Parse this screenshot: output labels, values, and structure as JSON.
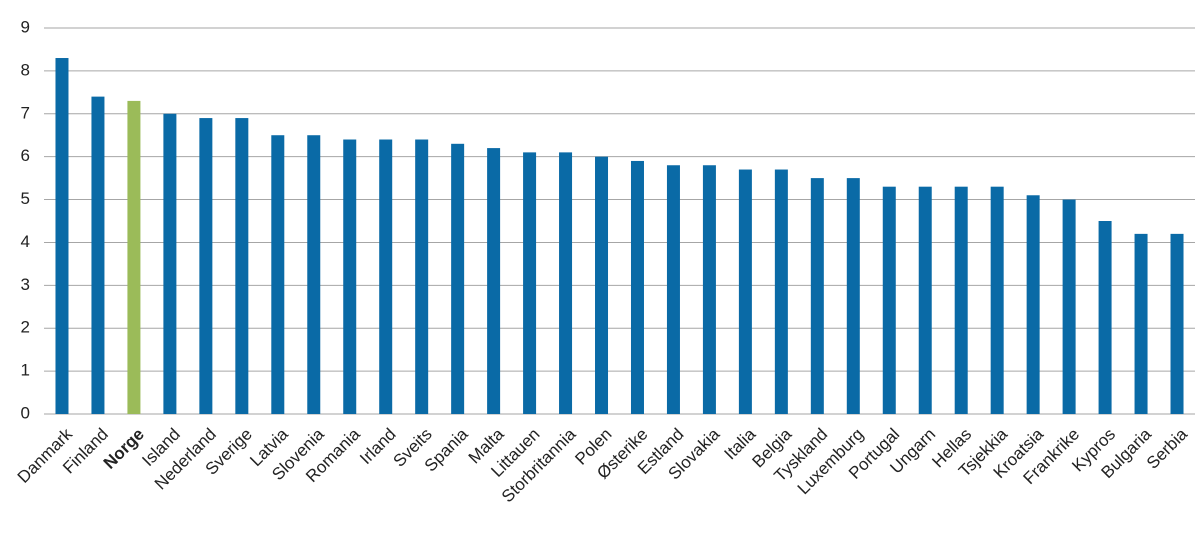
{
  "chart_data": {
    "type": "bar",
    "categories": [
      "Danmark",
      "Finland",
      "Norge",
      "Island",
      "Nederland",
      "Sverige",
      "Latvia",
      "Slovenia",
      "Romania",
      "Irland",
      "Sveits",
      "Spania",
      "Malta",
      "Littauen",
      "Storbritannia",
      "Polen",
      "Østerike",
      "Estland",
      "Slovakia",
      "Italia",
      "Belgia",
      "Tyskland",
      "Luxemburg",
      "Portugal",
      "Ungarn",
      "Hellas",
      "Tsjekkia",
      "Kroatsia",
      "Frankrike",
      "Kypros",
      "Bulgaria",
      "Serbia"
    ],
    "values": [
      8.3,
      7.4,
      7.3,
      7.0,
      6.9,
      6.9,
      6.5,
      6.5,
      6.4,
      6.4,
      6.4,
      6.3,
      6.2,
      6.1,
      6.1,
      6.0,
      5.9,
      5.8,
      5.8,
      5.7,
      5.7,
      5.5,
      5.5,
      5.3,
      5.3,
      5.3,
      5.3,
      5.1,
      5.0,
      4.5,
      4.2,
      4.2
    ],
    "color": "#0a6aa6",
    "colors": [
      "#0a6aa6",
      "#0a6aa6",
      "#9bbb59",
      "#0a6aa6",
      "#0a6aa6",
      "#0a6aa6",
      "#0a6aa6",
      "#0a6aa6",
      "#0a6aa6",
      "#0a6aa6",
      "#0a6aa6",
      "#0a6aa6",
      "#0a6aa6",
      "#0a6aa6",
      "#0a6aa6",
      "#0a6aa6",
      "#0a6aa6",
      "#0a6aa6",
      "#0a6aa6",
      "#0a6aa6",
      "#0a6aa6",
      "#0a6aa6",
      "#0a6aa6",
      "#0a6aa6",
      "#0a6aa6",
      "#0a6aa6",
      "#0a6aa6",
      "#0a6aa6",
      "#0a6aa6",
      "#0a6aa6",
      "#0a6aa6",
      "#0a6aa6"
    ],
    "ylim": [
      0,
      9
    ],
    "yticks": [
      0,
      1,
      2,
      3,
      4,
      5,
      6,
      7,
      8,
      9
    ],
    "grid": true
  }
}
